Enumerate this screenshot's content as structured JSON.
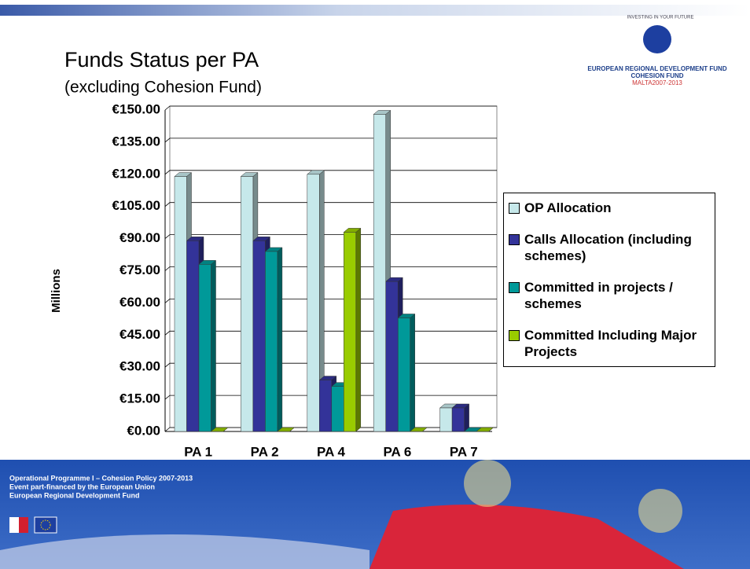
{
  "chart_data": {
    "type": "bar",
    "title": "Funds Status per PA",
    "subtitle": "(excluding Cohesion Fund)",
    "y_label": "Millions",
    "categories": [
      "PA 1",
      "PA 2",
      "PA 4",
      "PA 6",
      "PA 7"
    ],
    "series": [
      {
        "name": "OP Allocation",
        "color": "#c6e8ea",
        "values": [
          119,
          119,
          120,
          148,
          11
        ]
      },
      {
        "name": "Calls Allocation (including schemes)",
        "color": "#333399",
        "values": [
          89,
          89,
          24,
          70,
          11
        ]
      },
      {
        "name": "Committed in projects / schemes",
        "color": "#009999",
        "values": [
          78,
          84,
          21,
          53,
          0
        ]
      },
      {
        "name": "Committed Including Major Projects",
        "color": "#99cc00",
        "values": [
          0,
          0,
          93,
          0,
          0
        ]
      }
    ],
    "ylim": [
      0,
      150
    ],
    "yticks": [
      {
        "value": 0,
        "label": "€0.00"
      },
      {
        "value": 15,
        "label": "€15.00"
      },
      {
        "value": 30,
        "label": "€30.00"
      },
      {
        "value": 45,
        "label": "€45.00"
      },
      {
        "value": 60,
        "label": "€60.00"
      },
      {
        "value": 75,
        "label": "€75.00"
      },
      {
        "value": 90,
        "label": "€90.00"
      },
      {
        "value": 105,
        "label": "€105.00"
      },
      {
        "value": 120,
        "label": "€120.00"
      },
      {
        "value": 135,
        "label": "€135.00"
      },
      {
        "value": 150,
        "label": "€150.00"
      }
    ],
    "grid": true,
    "legend": "right"
  },
  "logo": {
    "motto": "INVESTING IN YOUR FUTURE",
    "line1": "EUROPEAN REGIONAL DEVELOPMENT FUND",
    "line2": "COHESION FUND",
    "line3": "MALTA2007-2013"
  },
  "footer": {
    "lines": [
      "Operational Programme I – Cohesion Policy 2007-2013",
      "Event part-financed by the European Union",
      "European Regional Development Fund"
    ]
  }
}
